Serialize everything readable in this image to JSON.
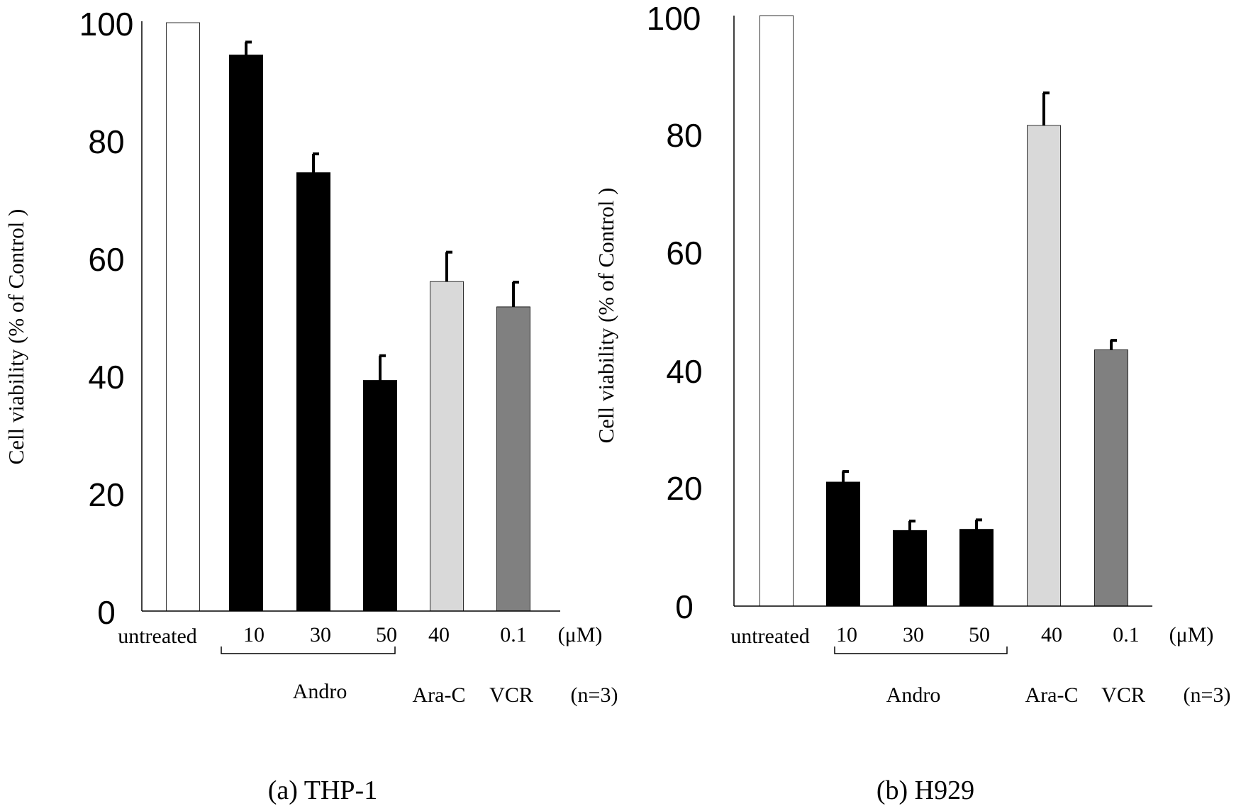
{
  "chart_data": [
    {
      "type": "bar",
      "caption": "(a) THP-1",
      "ylabel": "Cell viability (% of Control )",
      "ylim": [
        0,
        100
      ],
      "yticks": [
        0,
        20,
        40,
        60,
        80,
        100
      ],
      "categories": [
        "untreated",
        "10",
        "30",
        "50",
        "40",
        "0.1"
      ],
      "values": [
        100,
        94.5,
        74.5,
        39.2,
        56,
        51.7
      ],
      "errors": [
        0,
        2.2,
        3.2,
        4.2,
        5,
        4.2
      ],
      "bar_colors": [
        "#ffffff",
        "#000000",
        "#000000",
        "#000000",
        "#d9d9d9",
        "#808080"
      ],
      "unit_label": "(μM)",
      "group_labels": [
        "Andro",
        "Ara-C",
        "VCR"
      ],
      "n_label": "(n=3)"
    },
    {
      "type": "bar",
      "caption": "(b) H929",
      "ylabel": "Cell viability (% of Control )",
      "ylim": [
        0,
        100
      ],
      "yticks": [
        0,
        20,
        40,
        60,
        80,
        100
      ],
      "categories": [
        "untreated",
        "10",
        "30",
        "50",
        "40",
        "0.1"
      ],
      "values": [
        100,
        21,
        12.8,
        13,
        81.4,
        43.4
      ],
      "errors": [
        0,
        1.8,
        1.6,
        1.6,
        5.5,
        1.6
      ],
      "bar_colors": [
        "#ffffff",
        "#000000",
        "#000000",
        "#000000",
        "#d9d9d9",
        "#808080"
      ],
      "unit_label": "(μM)",
      "group_labels": [
        "Andro",
        "Ara-C",
        "VCR"
      ],
      "n_label": "(n=3)"
    }
  ]
}
